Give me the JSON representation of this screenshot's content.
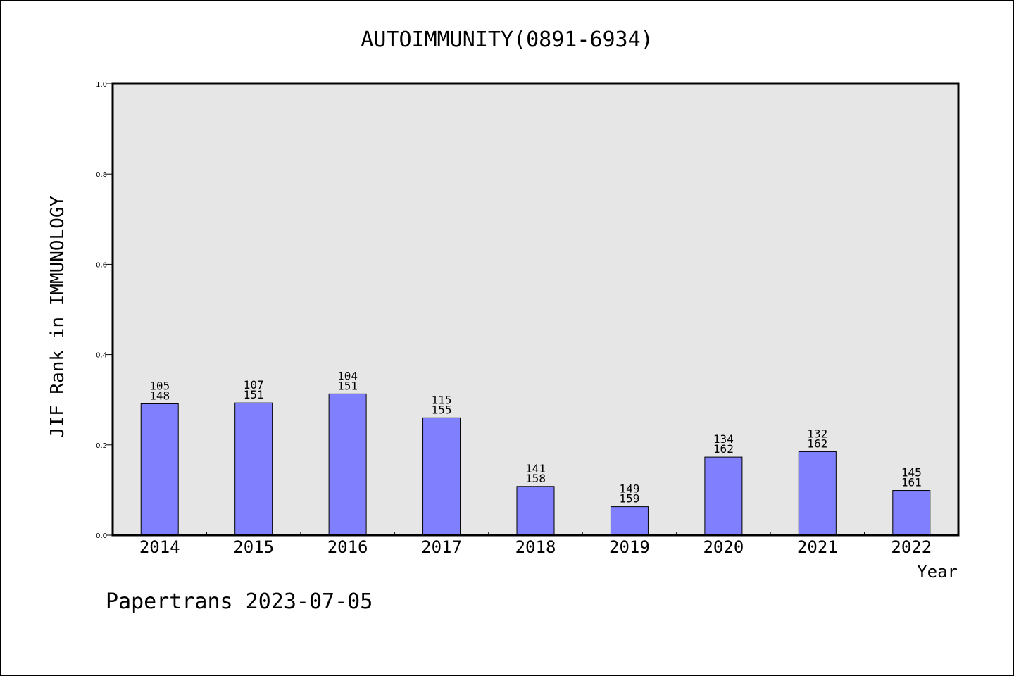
{
  "chart_data": {
    "type": "bar",
    "title": "AUTOIMMUNITY(0891-6934)",
    "xlabel": "Year",
    "ylabel": "JIF Rank in IMMUNOLOGY",
    "ylim": [
      0.0,
      1.0
    ],
    "yticks": [
      "0.0",
      "0.2",
      "0.4",
      "0.6",
      "0.8",
      "1.0"
    ],
    "grid": false,
    "categories": [
      "2014",
      "2015",
      "2016",
      "2017",
      "2018",
      "2019",
      "2020",
      "2021",
      "2022"
    ],
    "values": [
      0.291,
      0.293,
      0.313,
      0.26,
      0.108,
      0.063,
      0.173,
      0.185,
      0.099
    ],
    "rank": [
      "105",
      "107",
      "104",
      "115",
      "141",
      "149",
      "134",
      "132",
      "145"
    ],
    "total": [
      "148",
      "151",
      "151",
      "155",
      "158",
      "159",
      "162",
      "162",
      "161"
    ],
    "bar_color": "#8080ff",
    "plot_background": "#e6e6e6"
  },
  "footer": "Papertrans 2023-07-05"
}
